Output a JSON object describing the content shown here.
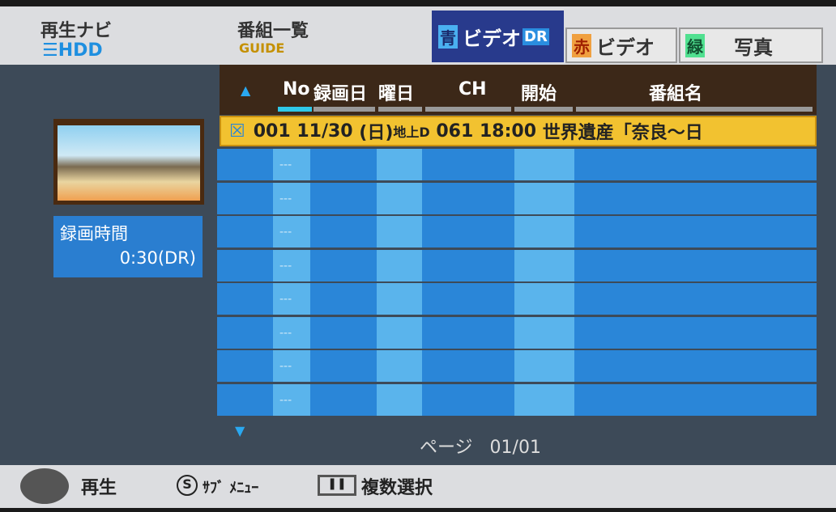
{
  "header": {
    "nav_title": "再生ナビ",
    "hdd": "HDD",
    "program_list": "番組一覧",
    "guide": "GUIDE"
  },
  "tabs": [
    {
      "key": "青",
      "label": "ビデオ",
      "badge": "DR",
      "active": true
    },
    {
      "key": "赤",
      "label": "ビデオ"
    },
    {
      "key": "緑",
      "label": "写真"
    }
  ],
  "left": {
    "rec_time_label": "録画時間",
    "rec_time_value": "0:30(DR)"
  },
  "columns": [
    "No",
    "録画日",
    "曜日",
    "CH",
    "開始",
    "番組名"
  ],
  "selected_row": {
    "no": "001",
    "date": "11/30",
    "day": "(日)",
    "ch_type": "地上D",
    "ch": "061",
    "start": "18:00",
    "title": "世界遺産「奈良～日"
  },
  "empty_placeholder": "---",
  "page": {
    "label": "ページ",
    "value": "01/01"
  },
  "footer": {
    "play": "再生",
    "submenu": "ｻﾌﾞ ﾒﾆｭｰ",
    "multi": "複数選択",
    "s_key": "S"
  },
  "colors": {
    "row": "#2a86d8",
    "selected": "#f2c230",
    "tab_active": "#283a8c"
  }
}
